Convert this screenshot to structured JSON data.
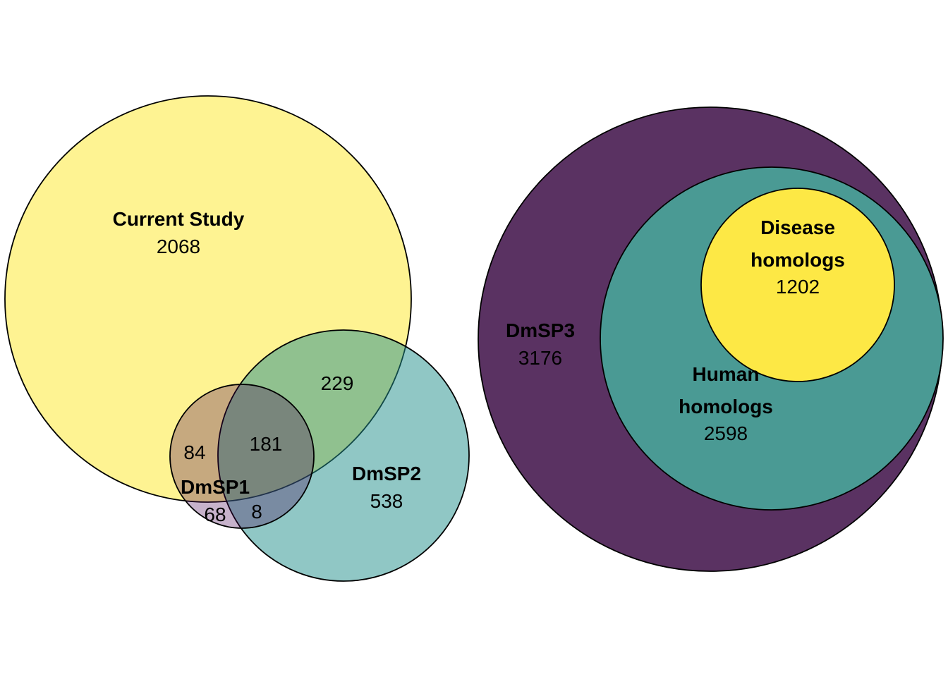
{
  "left_venn": {
    "sets": [
      {
        "name": "Current Study",
        "count": "2068",
        "color": "#FDE725"
      },
      {
        "name": "DmSP1",
        "count": "68",
        "color": "#440154"
      },
      {
        "name": "DmSP2",
        "count": "538",
        "color": "#21908C"
      }
    ],
    "intersections": {
      "current_study_and_dmsp1": "84",
      "all_three": "181",
      "current_study_and_dmsp2": "229",
      "dmsp1_and_dmsp2": "8"
    }
  },
  "right_venn": {
    "sets": [
      {
        "name": "DmSP3",
        "count": "3176",
        "color": "#440154"
      },
      {
        "name_line1": "Human",
        "name_line2": "homologs",
        "count": "2598",
        "color": "#21908C"
      },
      {
        "name_line1": "Disease",
        "name_line2": "homologs",
        "count": "1202",
        "color": "#FDE725"
      }
    ]
  }
}
